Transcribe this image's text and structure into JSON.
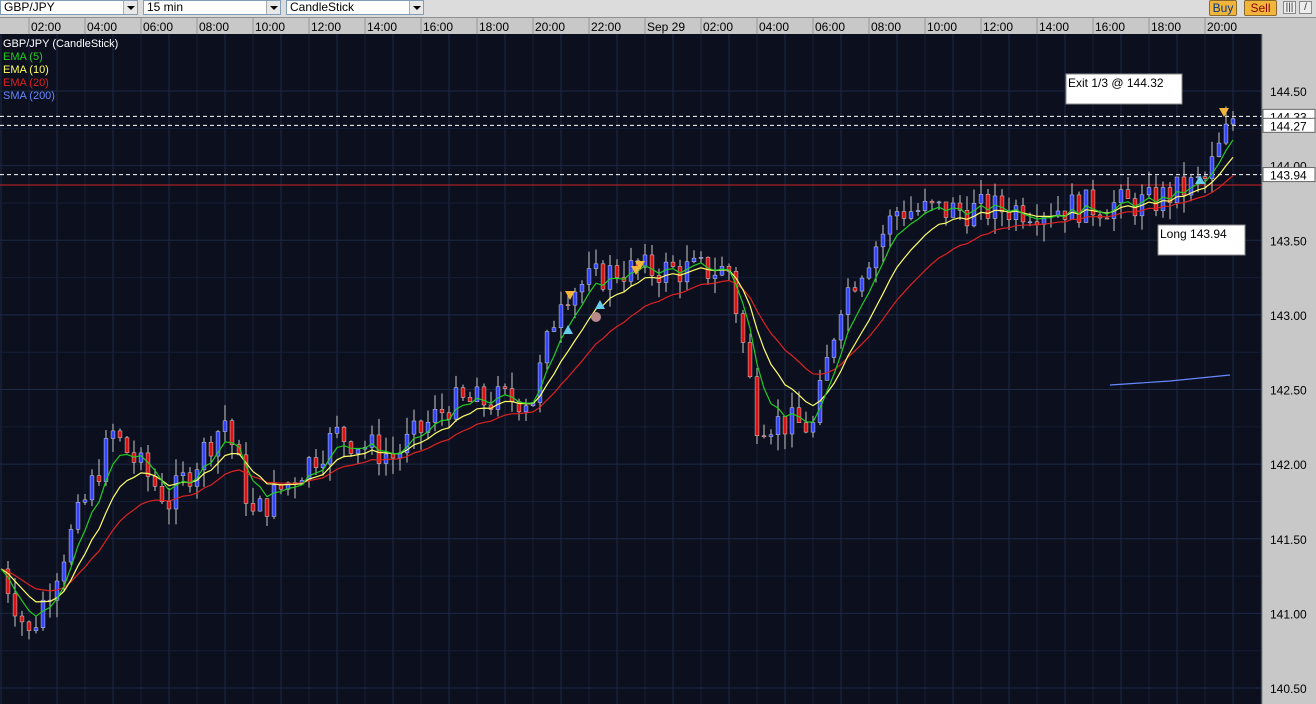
{
  "toolbar": {
    "symbol": "GBP/JPY",
    "timeframe": "15 min",
    "chart_style": "CandleStick",
    "buy_label": "Buy",
    "sell_label": "Sell",
    "icons": [
      "chart-settings-icon",
      "draw-line-icon"
    ]
  },
  "time_axis": [
    "p 28",
    "02:00",
    "04:00",
    "06:00",
    "08:00",
    "10:00",
    "12:00",
    "14:00",
    "16:00",
    "18:00",
    "20:00",
    "22:00",
    "Sep 29",
    "02:00",
    "04:00",
    "06:00",
    "08:00",
    "10:00",
    "12:00",
    "14:00",
    "16:00",
    "18:00",
    "20:00"
  ],
  "price_axis": [
    "144.50",
    "144.00",
    "143.50",
    "143.00",
    "142.50",
    "142.00",
    "141.50",
    "141.00",
    "140.50"
  ],
  "price_markers": [
    "144.33",
    "144.27",
    "143.94"
  ],
  "legend": [
    {
      "label": "GBP/JPY (CandleStick)",
      "color": "#ffffff"
    },
    {
      "label": "EMA (5)",
      "color": "#22cc22"
    },
    {
      "label": "EMA (10)",
      "color": "#ffff66"
    },
    {
      "label": "EMA (20)",
      "color": "#dd2222"
    },
    {
      "label": "SMA (200)",
      "color": "#6688ff"
    }
  ],
  "annotations": {
    "exit_note": "Exit 1/3 @ 144.32",
    "entry_note": "Long 143.94"
  },
  "colors": {
    "background": "#0b0f1e",
    "grid": "#1c2a44",
    "up_candle": "#3344ff",
    "down_candle": "#dd1111",
    "wick": "#c8c8c8",
    "level_line": "#cc2222"
  },
  "chart_data": {
    "type": "candlestick",
    "symbol": "GBP/JPY",
    "interval": "15 min",
    "ylim": [
      140.5,
      144.65
    ],
    "levels": [
      144.33,
      144.27,
      143.94,
      143.87
    ],
    "key_points": [
      {
        "time": "Sep 28 00:00",
        "close": 141.3
      },
      {
        "time": "Sep 28 01:00",
        "close": 140.85
      },
      {
        "time": "Sep 28 04:00",
        "close": 142.2
      },
      {
        "time": "Sep 28 06:00",
        "close": 141.75
      },
      {
        "time": "Sep 28 08:00",
        "close": 142.3
      },
      {
        "time": "Sep 28 09:00",
        "close": 141.65
      },
      {
        "time": "Sep 28 12:00",
        "close": 142.2
      },
      {
        "time": "Sep 28 14:00",
        "close": 142.05
      },
      {
        "time": "Sep 28 16:00",
        "close": 142.4
      },
      {
        "time": "Sep 28 19:00",
        "close": 142.45
      },
      {
        "time": "Sep 28 20:00",
        "close": 143.15
      },
      {
        "time": "Sep 28 22:00",
        "close": 143.3
      },
      {
        "time": "Sep 29 02:00",
        "close": 143.3
      },
      {
        "time": "Sep 29 03:00",
        "close": 142.3
      },
      {
        "time": "Sep 29 05:00",
        "close": 142.25
      },
      {
        "time": "Sep 29 06:00",
        "close": 143.1
      },
      {
        "time": "Sep 29 08:00",
        "close": 143.7
      },
      {
        "time": "Sep 29 10:00",
        "close": 143.7
      },
      {
        "time": "Sep 29 14:00",
        "close": 143.72
      },
      {
        "time": "Sep 29 17:00",
        "close": 143.75
      },
      {
        "time": "Sep 29 19:00",
        "close": 143.9
      },
      {
        "time": "Sep 29 20:00",
        "close": 144.32
      }
    ]
  }
}
